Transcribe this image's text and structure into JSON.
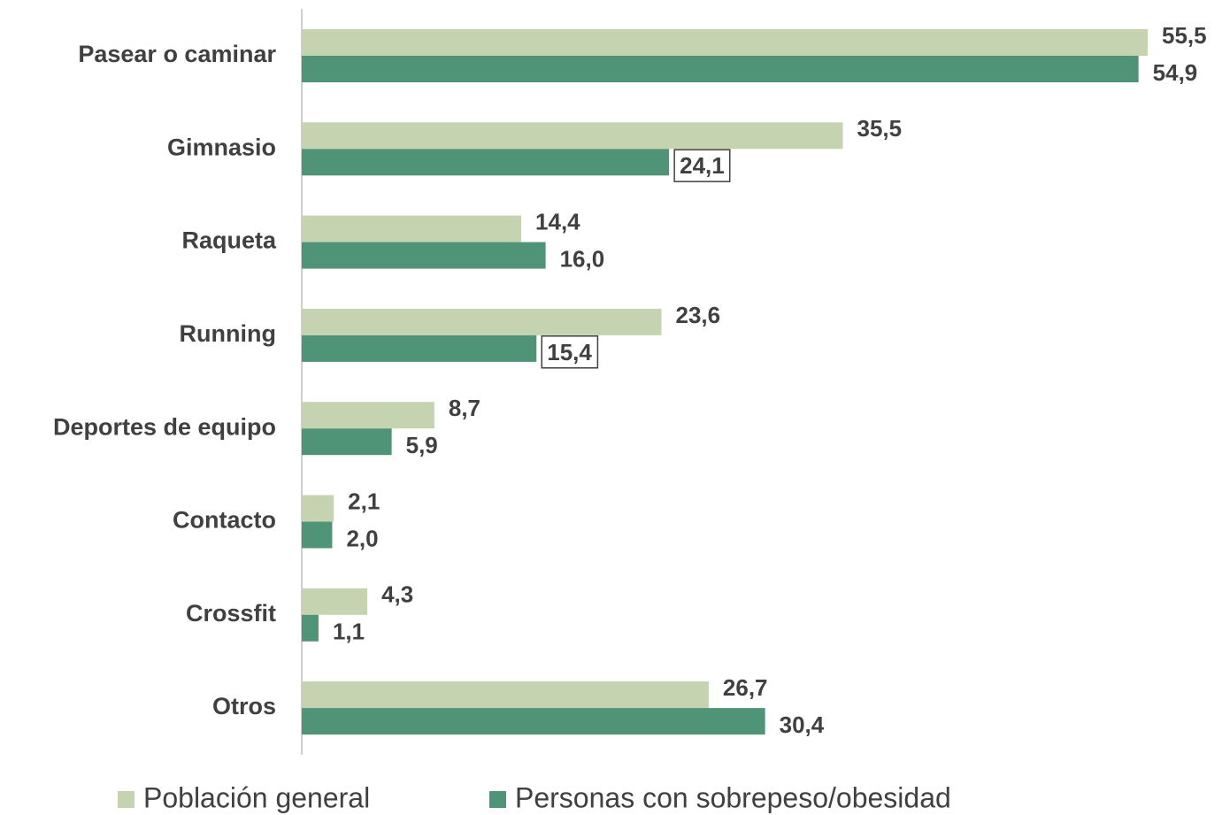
{
  "chart_data": {
    "type": "bar",
    "orientation": "horizontal",
    "categories": [
      "Pasear o caminar",
      "Gimnasio",
      "Raqueta",
      "Running",
      "Deportes de equipo",
      "Contacto",
      "Crossfit",
      "Otros"
    ],
    "series": [
      {
        "name": "Población general",
        "color": "#c5d3b1",
        "values": [
          55.5,
          35.5,
          14.4,
          23.6,
          8.7,
          2.1,
          4.3,
          26.7
        ],
        "value_labels": [
          "55,5",
          "35,5",
          "14,4",
          "23,6",
          "8,7",
          "2,1",
          "4,3",
          "26,7"
        ],
        "boxed_labels": [
          false,
          false,
          false,
          false,
          false,
          false,
          false,
          false
        ]
      },
      {
        "name": "Personas con sobrepeso/obesidad",
        "color": "#4f9477",
        "values": [
          54.9,
          24.1,
          16.0,
          15.4,
          5.9,
          2.0,
          1.1,
          30.4
        ],
        "value_labels": [
          "54,9",
          "24,1",
          "16,0",
          "15,4",
          "5,9",
          "2,0",
          "1,1",
          "30,4"
        ],
        "boxed_labels": [
          false,
          true,
          false,
          true,
          false,
          false,
          false,
          false
        ]
      }
    ],
    "legend": "bottom"
  }
}
